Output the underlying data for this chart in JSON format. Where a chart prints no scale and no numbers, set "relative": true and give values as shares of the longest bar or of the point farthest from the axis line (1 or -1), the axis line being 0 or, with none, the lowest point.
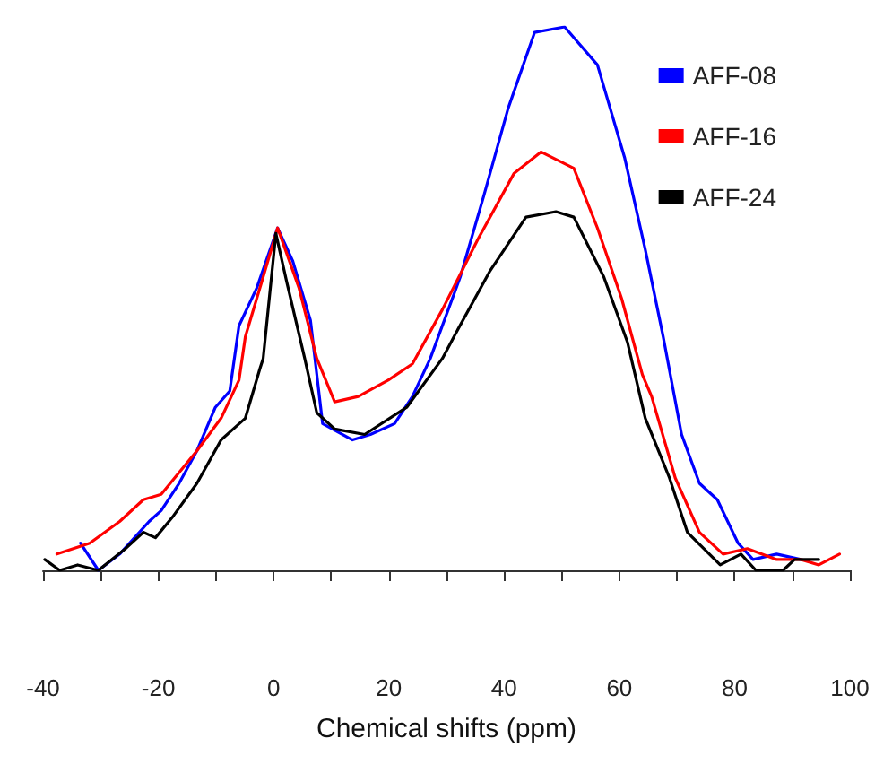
{
  "chart_data": {
    "type": "line",
    "xlabel": "Chemical shifts (ppm)",
    "relative": true,
    "xlim": [
      -40,
      100
    ],
    "xticks": [
      -40,
      {
        "value": -30,
        "label": null
      },
      -20,
      {
        "value": -10,
        "label": null
      },
      0,
      {
        "value": 10,
        "label": null
      },
      20,
      {
        "value": 30,
        "label": null
      },
      40,
      {
        "value": 50,
        "label": null
      },
      60,
      {
        "value": 70,
        "label": null
      },
      80,
      {
        "value": 90,
        "label": null
      },
      100
    ],
    "grid": false,
    "legend": "top right",
    "marker": "none",
    "line_style": "solid",
    "series": [
      {
        "name": "AFF-08",
        "color": "#0000ff",
        "x": [
          -33.5,
          -30.4,
          -26.7,
          -21.6,
          -19.5,
          -16.4,
          -13.3,
          -10.1,
          -7.6,
          -6.0,
          -2.9,
          0.7,
          3.3,
          6.4,
          8.5,
          13.7,
          16.8,
          21.0,
          24.1,
          27.2,
          32.4,
          36.5,
          40.7,
          45.3,
          50.5,
          56.2,
          60.9,
          64.5,
          67.6,
          70.8,
          73.9,
          77.0,
          80.6,
          83.2,
          87.3,
          91.5
        ],
        "values": [
          0.05,
          0.0,
          0.03,
          0.09,
          0.11,
          0.16,
          0.22,
          0.3,
          0.33,
          0.45,
          0.52,
          0.63,
          0.57,
          0.46,
          0.27,
          0.24,
          0.25,
          0.27,
          0.32,
          0.39,
          0.54,
          0.69,
          0.85,
          0.99,
          1.0,
          0.93,
          0.76,
          0.59,
          0.43,
          0.25,
          0.16,
          0.13,
          0.05,
          0.02,
          0.03,
          0.02
        ]
      },
      {
        "name": "AFF-16",
        "color": "#ff0000",
        "x": [
          -37.6,
          -31.9,
          -26.7,
          -22.6,
          -19.5,
          -13.3,
          -9.1,
          -6.0,
          -4.9,
          -1.8,
          0.7,
          4.4,
          7.5,
          10.6,
          14.7,
          19.9,
          24.1,
          29.3,
          35.5,
          41.7,
          46.4,
          52.1,
          56.2,
          60.4,
          64.0,
          65.6,
          69.7,
          73.9,
          78.0,
          82.2,
          87.3,
          91.5,
          94.6,
          98.2
        ],
        "values": [
          0.03,
          0.05,
          0.09,
          0.13,
          0.14,
          0.22,
          0.28,
          0.35,
          0.43,
          0.54,
          0.63,
          0.52,
          0.39,
          0.31,
          0.32,
          0.35,
          0.38,
          0.48,
          0.61,
          0.73,
          0.77,
          0.74,
          0.63,
          0.5,
          0.36,
          0.32,
          0.17,
          0.07,
          0.03,
          0.04,
          0.02,
          0.02,
          0.01,
          0.03
        ]
      },
      {
        "name": "AFF-24",
        "color": "#000000",
        "x": [
          -39.7,
          -37.1,
          -34.0,
          -30.4,
          -25.7,
          -22.6,
          -20.5,
          -17.4,
          -13.3,
          -9.1,
          -4.9,
          -2.4,
          -1.8,
          0.4,
          2.3,
          5.4,
          7.5,
          10.6,
          15.8,
          23.1,
          29.3,
          31.3,
          37.5,
          43.8,
          49.0,
          52.1,
          57.3,
          61.4,
          64.5,
          68.7,
          71.8,
          77.5,
          81.1,
          83.7,
          88.4,
          90.4,
          94.6
        ],
        "values": [
          0.02,
          0.0,
          0.01,
          0.0,
          0.04,
          0.07,
          0.06,
          0.1,
          0.16,
          0.24,
          0.28,
          0.37,
          0.39,
          0.62,
          0.53,
          0.39,
          0.29,
          0.26,
          0.25,
          0.3,
          0.39,
          0.43,
          0.55,
          0.65,
          0.66,
          0.65,
          0.54,
          0.42,
          0.28,
          0.17,
          0.07,
          0.01,
          0.03,
          0.0,
          0.0,
          0.02,
          0.02
        ]
      }
    ]
  }
}
